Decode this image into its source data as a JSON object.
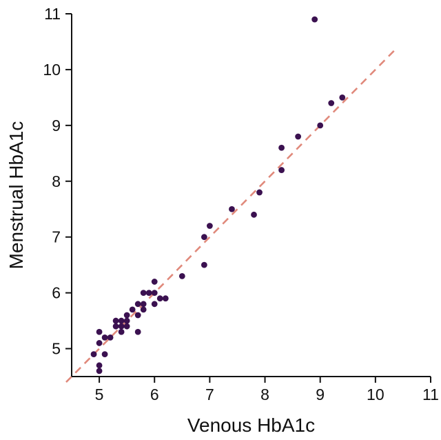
{
  "chart_data": {
    "type": "scatter",
    "title": "",
    "xlabel": "Venous HbA1c",
    "ylabel": "Menstrual HbA1c",
    "xlim": [
      4.5,
      11
    ],
    "ylim": [
      4.5,
      11
    ],
    "xticks": [
      "5",
      "6",
      "7",
      "8",
      "9",
      "10",
      "11"
    ],
    "yticks": [
      "5",
      "6",
      "7",
      "8",
      "9",
      "10",
      "11"
    ],
    "grid": false,
    "colors": {
      "points": "#3b1150",
      "reference_line": "#e0897b",
      "axis": "#111111"
    },
    "reference_line": {
      "style": "dashed",
      "slope": 1,
      "intercept": 0
    },
    "series": [
      {
        "points": [
          [
            4.9,
            4.9
          ],
          [
            5.0,
            5.3
          ],
          [
            5.0,
            5.1
          ],
          [
            5.0,
            4.7
          ],
          [
            5.0,
            4.6
          ],
          [
            5.1,
            5.2
          ],
          [
            5.1,
            4.9
          ],
          [
            5.2,
            5.2
          ],
          [
            5.3,
            5.5
          ],
          [
            5.3,
            5.4
          ],
          [
            5.4,
            5.5
          ],
          [
            5.4,
            5.4
          ],
          [
            5.4,
            5.3
          ],
          [
            5.5,
            5.6
          ],
          [
            5.5,
            5.5
          ],
          [
            5.5,
            5.4
          ],
          [
            5.6,
            5.7
          ],
          [
            5.7,
            5.8
          ],
          [
            5.7,
            5.6
          ],
          [
            5.7,
            5.3
          ],
          [
            5.8,
            6.0
          ],
          [
            5.8,
            5.8
          ],
          [
            5.8,
            5.7
          ],
          [
            5.9,
            6.0
          ],
          [
            6.0,
            6.2
          ],
          [
            6.0,
            6.0
          ],
          [
            6.0,
            5.8
          ],
          [
            6.1,
            5.9
          ],
          [
            6.2,
            5.9
          ],
          [
            6.5,
            6.3
          ],
          [
            6.9,
            7.0
          ],
          [
            6.9,
            6.5
          ],
          [
            7.0,
            7.2
          ],
          [
            7.4,
            7.5
          ],
          [
            7.8,
            7.4
          ],
          [
            7.9,
            7.8
          ],
          [
            8.3,
            8.6
          ],
          [
            8.3,
            8.2
          ],
          [
            8.6,
            8.8
          ],
          [
            8.9,
            10.9
          ],
          [
            9.0,
            9.0
          ],
          [
            9.2,
            9.4
          ],
          [
            9.4,
            9.5
          ]
        ]
      }
    ]
  }
}
